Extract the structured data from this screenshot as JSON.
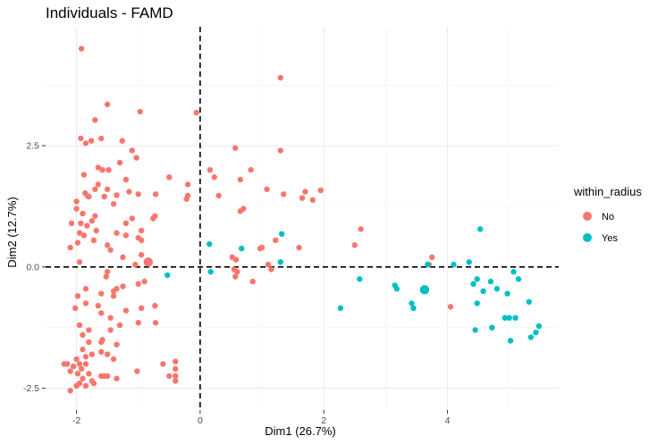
{
  "chart_data": {
    "type": "scatter",
    "title": "Individuals - FAMD",
    "xlabel": "Dim1 (26.7%)",
    "ylabel": "Dim2 (12.7%)",
    "xlim": [
      -2.5,
      5.8
    ],
    "ylim": [
      -2.95,
      4.95
    ],
    "x_ticks": [
      -2,
      0,
      2,
      4
    ],
    "x_tick_labels": [
      "-2",
      "0",
      "2",
      "4"
    ],
    "y_ticks": [
      -2.5,
      0,
      2.5
    ],
    "y_tick_labels": [
      "-2.5",
      "0.0",
      "2.5"
    ],
    "grid": true,
    "reference_lines": {
      "x": 0,
      "y": 0,
      "style": "dashed"
    },
    "legend": {
      "title": "within_radius",
      "position": "right",
      "entries": [
        {
          "label": "No",
          "color": "#f8766d"
        },
        {
          "label": "Yes",
          "color": "#00bfc4"
        }
      ]
    },
    "series": [
      {
        "name": "No",
        "color": "#f8766d",
        "centroid": [
          -0.84,
          0.1
        ],
        "points": [
          [
            -1.92,
            4.5
          ],
          [
            1.3,
            3.9
          ],
          [
            -1.5,
            3.35
          ],
          [
            -0.97,
            3.2
          ],
          [
            -0.06,
            3.18
          ],
          [
            -1.7,
            3.03
          ],
          [
            -1.93,
            2.65
          ],
          [
            -1.76,
            2.6
          ],
          [
            -1.6,
            2.65
          ],
          [
            -1.85,
            2.55
          ],
          [
            -1.26,
            2.6
          ],
          [
            -1.1,
            2.4
          ],
          [
            -1.3,
            2.15
          ],
          [
            -1.03,
            2.25
          ],
          [
            -1.58,
            2.0
          ],
          [
            -1.48,
            2.0
          ],
          [
            -1.65,
            2.05
          ],
          [
            0.57,
            2.45
          ],
          [
            1.3,
            2.4
          ],
          [
            0.16,
            2.0
          ],
          [
            0.82,
            2.0
          ],
          [
            -1.88,
            1.9
          ],
          [
            -1.65,
            1.7
          ],
          [
            -1.2,
            1.8
          ],
          [
            -1.5,
            1.6
          ],
          [
            -0.5,
            1.85
          ],
          [
            -0.2,
            1.7
          ],
          [
            -1.7,
            1.6
          ],
          [
            -1.8,
            1.45
          ],
          [
            0.23,
            1.85
          ],
          [
            0.65,
            1.8
          ],
          [
            1.08,
            1.6
          ],
          [
            -1.86,
            1.52
          ],
          [
            -1.82,
            1.46
          ],
          [
            -2.0,
            1.35
          ],
          [
            -1.0,
            1.5
          ],
          [
            -1.15,
            1.55
          ],
          [
            -1.35,
            1.48
          ],
          [
            -1.55,
            1.45
          ],
          [
            -0.72,
            1.5
          ],
          [
            -0.2,
            1.47
          ],
          [
            -0.22,
            1.4
          ],
          [
            0.3,
            1.47
          ],
          [
            0.7,
            1.2
          ],
          [
            1.7,
            1.55
          ],
          [
            1.95,
            1.58
          ],
          [
            1.35,
            1.5
          ],
          [
            1.65,
            1.42
          ],
          [
            1.82,
            1.38
          ],
          [
            -2.0,
            1.2
          ],
          [
            -1.9,
            1.1
          ],
          [
            -1.4,
            1.3
          ],
          [
            -1.7,
            1.05
          ],
          [
            -0.73,
            1.05
          ],
          [
            -0.76,
            1.0
          ],
          [
            -1.1,
            1.0
          ],
          [
            0.65,
            1.15
          ],
          [
            -2.08,
            0.9
          ],
          [
            -1.93,
            0.9
          ],
          [
            -1.83,
            0.85
          ],
          [
            -1.75,
            0.95
          ],
          [
            -1.68,
            0.75
          ],
          [
            -1.2,
            0.9
          ],
          [
            -0.95,
            0.75
          ],
          [
            -1.95,
            0.7
          ],
          [
            -1.88,
            0.65
          ],
          [
            -1.72,
            0.55
          ],
          [
            -1.5,
            0.45
          ],
          [
            -1.35,
            0.7
          ],
          [
            -1.2,
            0.65
          ],
          [
            -1.0,
            0.6
          ],
          [
            -1.98,
            0.5
          ],
          [
            -2.1,
            0.4
          ],
          [
            -1.45,
            0.35
          ],
          [
            -0.95,
            0.55
          ],
          [
            -0.95,
            0.25
          ],
          [
            -1.25,
            0.2
          ],
          [
            -1.95,
            0.1
          ],
          [
            -1.05,
            0.05
          ],
          [
            2.6,
            0.78
          ],
          [
            2.5,
            0.45
          ],
          [
            1.22,
            0.55
          ],
          [
            1.0,
            0.4
          ],
          [
            0.97,
            0.38
          ],
          [
            1.6,
            0.4
          ],
          [
            3.75,
            0.2
          ],
          [
            3.7,
            0.05
          ],
          [
            1.1,
            0.05
          ],
          [
            1.15,
            -0.05
          ],
          [
            0.58,
            0.15
          ],
          [
            0.6,
            -0.1
          ],
          [
            0.57,
            -0.2
          ],
          [
            0.85,
            -0.3
          ],
          [
            -1.5,
            -0.1
          ],
          [
            -1.52,
            -0.2
          ],
          [
            -1.85,
            -0.45
          ],
          [
            -1.6,
            -0.55
          ],
          [
            -1.4,
            -0.6
          ],
          [
            -0.9,
            -0.3
          ],
          [
            -1.0,
            -0.35
          ],
          [
            -1.25,
            -0.4
          ],
          [
            -1.35,
            -0.45
          ],
          [
            -1.4,
            -0.5
          ],
          [
            -1.98,
            -0.6
          ],
          [
            -2.02,
            -0.85
          ],
          [
            -1.65,
            -0.8
          ],
          [
            -1.85,
            -0.75
          ],
          [
            -0.95,
            -0.85
          ],
          [
            -0.73,
            -0.8
          ],
          [
            -1.2,
            -0.9
          ],
          [
            -1.45,
            -1.05
          ],
          [
            -1.6,
            -0.95
          ],
          [
            -1.0,
            -1.15
          ],
          [
            -1.8,
            -1.3
          ],
          [
            -1.95,
            -1.2
          ],
          [
            -0.72,
            -1.15
          ],
          [
            -1.45,
            -1.3
          ],
          [
            -1.58,
            -1.5
          ],
          [
            -1.9,
            -1.4
          ],
          [
            -1.3,
            -1.2
          ],
          [
            -1.35,
            -1.6
          ],
          [
            -1.6,
            -1.55
          ],
          [
            -1.8,
            -1.55
          ],
          [
            -1.9,
            -1.7
          ],
          [
            -2.0,
            -1.9
          ],
          [
            -1.85,
            -1.85
          ],
          [
            -1.75,
            -1.8
          ],
          [
            -1.6,
            -1.75
          ],
          [
            -1.5,
            -1.8
          ],
          [
            -1.4,
            -1.9
          ],
          [
            -1.95,
            -2.0
          ],
          [
            -1.85,
            -2.0
          ],
          [
            -2.15,
            -2.0
          ],
          [
            -2.2,
            -2.0
          ],
          [
            -2.1,
            -2.15
          ],
          [
            -2.05,
            -2.05
          ],
          [
            -1.92,
            -2.1
          ],
          [
            -1.98,
            -2.2
          ],
          [
            -1.9,
            -2.3
          ],
          [
            -1.8,
            -2.2
          ],
          [
            -1.75,
            -2.35
          ],
          [
            -1.95,
            -2.4
          ],
          [
            -1.6,
            -2.25
          ],
          [
            -1.5,
            -2.25
          ],
          [
            -1.02,
            -2.15
          ],
          [
            -0.6,
            -2.0
          ],
          [
            -0.4,
            -1.95
          ],
          [
            -0.4,
            -2.1
          ],
          [
            -0.4,
            -2.25
          ],
          [
            -0.4,
            -2.35
          ],
          [
            -0.5,
            -2.25
          ],
          [
            -1.35,
            -2.3
          ],
          [
            -1.55,
            -2.25
          ],
          [
            -1.72,
            -2.4
          ],
          [
            -1.85,
            -2.45
          ],
          [
            -2.0,
            -2.45
          ],
          [
            -2.1,
            -2.55
          ],
          [
            4.05,
            -0.82
          ],
          [
            0.52,
            0.2
          ],
          [
            0.55,
            -0.05
          ]
        ]
      },
      {
        "name": "Yes",
        "color": "#00bfc4",
        "centroid": [
          3.63,
          -0.47
        ],
        "points": [
          [
            4.53,
            0.78
          ],
          [
            1.32,
            0.68
          ],
          [
            0.15,
            0.47
          ],
          [
            0.67,
            0.38
          ],
          [
            1.3,
            0.1
          ],
          [
            0.17,
            -0.1
          ],
          [
            -0.53,
            -0.17
          ],
          [
            2.58,
            -0.25
          ],
          [
            3.15,
            -0.38
          ],
          [
            3.18,
            -0.45
          ],
          [
            3.42,
            -0.75
          ],
          [
            3.45,
            -0.85
          ],
          [
            3.68,
            0.05
          ],
          [
            4.1,
            0.05
          ],
          [
            4.35,
            0.1
          ],
          [
            4.48,
            -0.25
          ],
          [
            4.42,
            -0.35
          ],
          [
            4.58,
            -0.5
          ],
          [
            4.7,
            -0.3
          ],
          [
            4.8,
            -0.45
          ],
          [
            4.97,
            -0.55
          ],
          [
            5.07,
            -0.1
          ],
          [
            5.15,
            -0.25
          ],
          [
            4.48,
            -0.75
          ],
          [
            5.32,
            -0.72
          ],
          [
            5.0,
            -1.05
          ],
          [
            5.1,
            -1.05
          ],
          [
            4.93,
            -1.05
          ],
          [
            5.48,
            -1.22
          ],
          [
            5.43,
            -1.35
          ],
          [
            5.35,
            -1.45
          ],
          [
            5.02,
            -1.52
          ],
          [
            4.45,
            -1.3
          ],
          [
            4.72,
            -1.25
          ],
          [
            2.27,
            -0.85
          ]
        ]
      }
    ]
  }
}
